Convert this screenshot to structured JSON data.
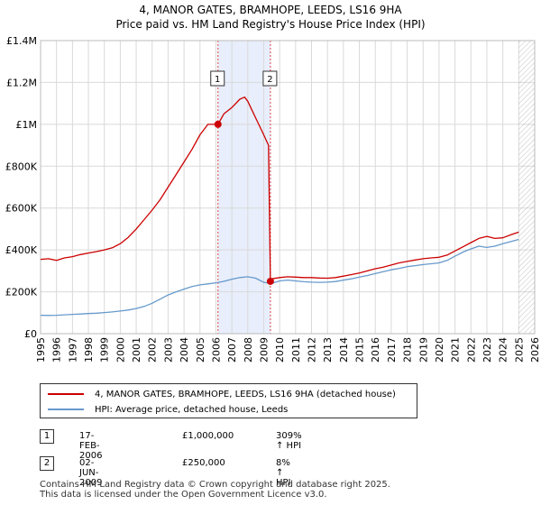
{
  "title_line1": "4, MANOR GATES, BRAMHOPE, LEEDS, LS16 9HA",
  "title_line2": "Price paid vs. HM Land Registry's House Price Index (HPI)",
  "colors": {
    "property": "#cc0000",
    "hpi": "#6699cc",
    "shade": "#e8eefb",
    "vline": "#dd4444",
    "grid": "#d9d9d9"
  },
  "legend": {
    "property_label": "4, MANOR GATES, BRAMHOPE, LEEDS, LS16 9HA (detached house)",
    "hpi_label": "HPI: Average price, detached house, Leeds"
  },
  "transactions": [
    {
      "num": "1",
      "date": "17-FEB-2006",
      "price": "£1,000,000",
      "hpi_change": "309% ↑ HPI"
    },
    {
      "num": "2",
      "date": "02-JUN-2009",
      "price": "£250,000",
      "hpi_change": "8% ↑ HPI"
    }
  ],
  "footer_line1": "Contains HM Land Registry data © Crown copyright and database right 2025.",
  "footer_line2": "This data is licensed under the Open Government Licence v3.0.",
  "chart_data": {
    "type": "line",
    "xlim": [
      1995,
      2026
    ],
    "ylim": [
      0,
      1400000
    ],
    "x_ticks": [
      "1995",
      "1996",
      "1997",
      "1998",
      "1999",
      "2000",
      "2001",
      "2002",
      "2003",
      "2004",
      "2005",
      "2006",
      "2007",
      "2008",
      "2009",
      "2010",
      "2011",
      "2012",
      "2013",
      "2014",
      "2015",
      "2016",
      "2017",
      "2018",
      "2019",
      "2020",
      "2021",
      "2022",
      "2023",
      "2024",
      "2025",
      "2026"
    ],
    "y_ticks": [
      {
        "value": 0,
        "label": "£0"
      },
      {
        "value": 200000,
        "label": "£200K"
      },
      {
        "value": 400000,
        "label": "£400K"
      },
      {
        "value": 600000,
        "label": "£600K"
      },
      {
        "value": 800000,
        "label": "£800K"
      },
      {
        "value": 1000000,
        "label": "£1M"
      },
      {
        "value": 1200000,
        "label": "£1.2M"
      },
      {
        "value": 1400000,
        "label": "£1.4M"
      }
    ],
    "shaded_region": [
      2006.13,
      2009.42
    ],
    "future_hatch_from": 2025.0,
    "markers": [
      {
        "label": "1",
        "x": 2006.13,
        "y": 1000000
      },
      {
        "label": "2",
        "x": 2009.42,
        "y": 250000
      }
    ],
    "series": [
      {
        "name": "4, MANOR GATES, BRAMHOPE, LEEDS, LS16 9HA (detached house)",
        "x": [
          1995.0,
          1995.5,
          1996.0,
          1996.5,
          1997.0,
          1997.5,
          1998.0,
          1998.5,
          1999.0,
          1999.5,
          2000.0,
          2000.5,
          2001.0,
          2001.5,
          2002.0,
          2002.5,
          2003.0,
          2003.5,
          2004.0,
          2004.5,
          2005.0,
          2005.5,
          2006.13,
          2006.5,
          2007.0,
          2007.5,
          2007.8,
          2008.0,
          2008.5,
          2009.0,
          2009.3,
          2009.42,
          2009.5,
          2010.0,
          2010.5,
          2011.0,
          2011.5,
          2012.0,
          2012.5,
          2013.0,
          2013.5,
          2014.0,
          2014.5,
          2015.0,
          2015.5,
          2016.0,
          2016.5,
          2017.0,
          2017.5,
          2018.0,
          2018.5,
          2019.0,
          2019.5,
          2020.0,
          2020.5,
          2021.0,
          2021.5,
          2022.0,
          2022.5,
          2023.0,
          2023.5,
          2024.0,
          2024.5,
          2025.0
        ],
        "y": [
          355000,
          358000,
          350000,
          362000,
          368000,
          378000,
          385000,
          392000,
          400000,
          410000,
          430000,
          460000,
          500000,
          545000,
          590000,
          640000,
          700000,
          760000,
          820000,
          880000,
          950000,
          1000000,
          1000000,
          1050000,
          1080000,
          1120000,
          1130000,
          1110000,
          1030000,
          950000,
          900000,
          250000,
          262000,
          268000,
          272000,
          270000,
          268000,
          268000,
          266000,
          265000,
          268000,
          275000,
          282000,
          290000,
          300000,
          310000,
          318000,
          328000,
          338000,
          345000,
          352000,
          358000,
          362000,
          365000,
          375000,
          395000,
          415000,
          435000,
          455000,
          465000,
          455000,
          458000,
          472000,
          485000
        ]
      },
      {
        "name": "HPI: Average price, detached house, Leeds",
        "x": [
          1995.0,
          1995.5,
          1996.0,
          1996.5,
          1997.0,
          1997.5,
          1998.0,
          1998.5,
          1999.0,
          1999.5,
          2000.0,
          2000.5,
          2001.0,
          2001.5,
          2002.0,
          2002.5,
          2003.0,
          2003.5,
          2004.0,
          2004.5,
          2005.0,
          2005.5,
          2006.0,
          2006.5,
          2007.0,
          2007.5,
          2008.0,
          2008.5,
          2009.0,
          2009.5,
          2010.0,
          2010.5,
          2011.0,
          2011.5,
          2012.0,
          2012.5,
          2013.0,
          2013.5,
          2014.0,
          2014.5,
          2015.0,
          2015.5,
          2016.0,
          2016.5,
          2017.0,
          2017.5,
          2018.0,
          2018.5,
          2019.0,
          2019.5,
          2020.0,
          2020.5,
          2021.0,
          2021.5,
          2022.0,
          2022.5,
          2023.0,
          2023.5,
          2024.0,
          2024.5,
          2025.0
        ],
        "y": [
          88000,
          87000,
          88000,
          90000,
          92000,
          94000,
          96000,
          98000,
          101000,
          104000,
          108000,
          113000,
          120000,
          130000,
          145000,
          165000,
          185000,
          200000,
          213000,
          225000,
          233000,
          238000,
          243000,
          250000,
          260000,
          268000,
          272000,
          265000,
          245000,
          240000,
          252000,
          256000,
          252000,
          248000,
          246000,
          245000,
          246000,
          249000,
          256000,
          262000,
          270000,
          278000,
          287000,
          296000,
          305000,
          312000,
          320000,
          325000,
          330000,
          334000,
          338000,
          350000,
          370000,
          390000,
          405000,
          418000,
          412000,
          418000,
          430000,
          440000,
          450000
        ]
      }
    ]
  }
}
